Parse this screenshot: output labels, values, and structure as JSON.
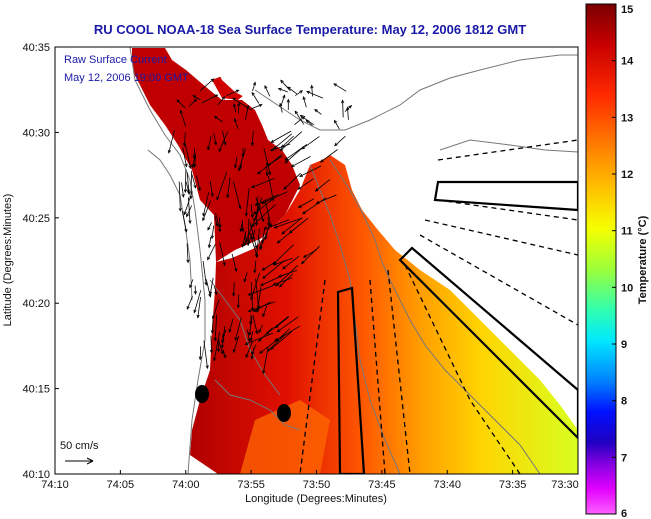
{
  "title": "RU COOL  NOAA-18  Sea Surface Temperature:  May 12, 2006 1812 GMT",
  "overlay": {
    "line1": "Raw Surface Current",
    "line2": "May 12, 2006 19:00 GMT"
  },
  "scale": {
    "label": "50 cm/s"
  },
  "axes": {
    "xlabel": "Longitude (Degrees:Minutes)",
    "ylabel": "Latitude (Degrees:Minutes)",
    "xticks": [
      "74:10",
      "74:05",
      "74:00",
      "73:55",
      "73:50",
      "73:45",
      "73:40",
      "73:35",
      "73:30"
    ],
    "yticks": [
      "40:35",
      "40:30",
      "40:25",
      "40:20",
      "40:15",
      "40:10"
    ]
  },
  "colorbar": {
    "label": "Temperature (°C)",
    "ticks": [
      "15",
      "14",
      "13",
      "12",
      "11",
      "10",
      "9",
      "8",
      "7",
      "6"
    ],
    "min": 6,
    "max": 15
  },
  "colors": {
    "title": "#1a1aa8",
    "land": "#ffffff",
    "coast": "#555555"
  },
  "buoys": [
    {
      "lon": "73:58.9",
      "lat": "40:14.6"
    },
    {
      "lon": "73:55.3",
      "lat": "40:13.5"
    }
  ]
}
